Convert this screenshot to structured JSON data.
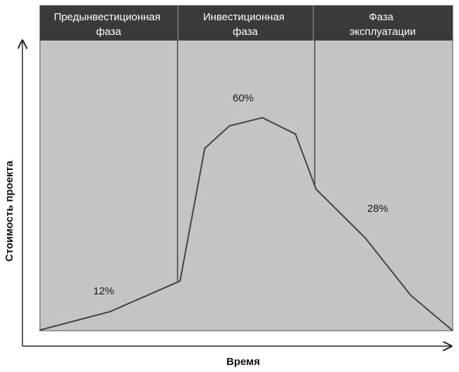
{
  "chart_data": {
    "type": "area",
    "title": "",
    "xlabel": "Время",
    "ylabel": "Стоимость проекта",
    "phases": [
      {
        "name": "Предынвестиционная фаза",
        "lines": [
          "Предынвестиционная",
          "фаза"
        ],
        "share_label": "12%"
      },
      {
        "name": "Инвестиционная фаза",
        "lines": [
          "Инвестиционная",
          "фаза"
        ],
        "share_label": "60%"
      },
      {
        "name": "Фаза эксплуатации",
        "lines": [
          "Фаза",
          "эксплуатации"
        ],
        "share_label": "28%"
      }
    ],
    "x": [
      0,
      0.17,
      0.34,
      0.4,
      0.46,
      0.54,
      0.62,
      0.67,
      0.79,
      0.9,
      1.0
    ],
    "y": [
      0,
      0.09,
      0.24,
      0.89,
      1.0,
      1.04,
      0.96,
      0.69,
      0.45,
      0.17,
      0.0
    ],
    "phase_boundaries_x": [
      0.334,
      0.667
    ],
    "grid": false,
    "colors": {
      "plot_background": "#c4c4c4",
      "header_band": "#3a3a3a",
      "line": "#444444"
    }
  }
}
